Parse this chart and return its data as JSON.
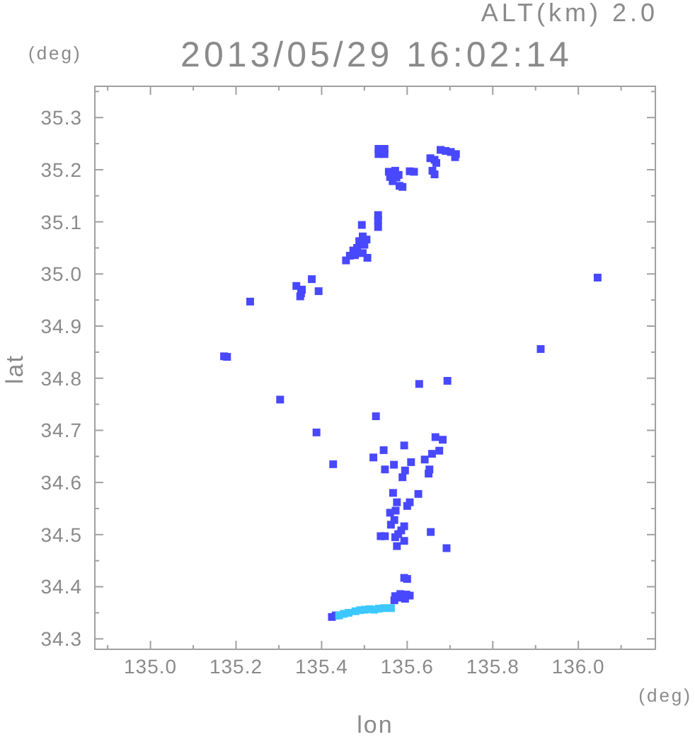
{
  "chart_data": {
    "type": "scatter",
    "title": "2013/05/29 16:02:14",
    "subtitle": "ALT(km) 2.0",
    "xlabel": "lon",
    "ylabel": "lat",
    "annotations": [
      "(deg)",
      "(deg)"
    ],
    "marker": "square",
    "xlim": [
      134.87,
      136.18
    ],
    "ylim": [
      34.28,
      35.36
    ],
    "xticks": [
      {
        "value": 134.9,
        "label": null
      },
      {
        "value": 135,
        "label": "135.0"
      },
      {
        "value": 135.1,
        "label": null
      },
      135.2,
      {
        "value": 135.3,
        "label": null
      },
      135.4,
      {
        "value": 135.5,
        "label": null
      },
      135.6,
      {
        "value": 135.7,
        "label": null
      },
      135.8,
      {
        "value": 135.9,
        "label": null
      },
      {
        "value": 136,
        "label": "136.0"
      },
      {
        "value": 136.1,
        "label": null
      }
    ],
    "yticks": [
      34.3,
      {
        "value": 34.35,
        "label": null
      },
      34.4,
      {
        "value": 34.45,
        "label": null
      },
      34.5,
      {
        "value": 34.55,
        "label": null
      },
      34.6,
      {
        "value": 34.65,
        "label": null
      },
      34.7,
      {
        "value": 34.75,
        "label": null
      },
      34.8,
      {
        "value": 34.85,
        "label": null
      },
      34.9,
      {
        "value": 34.95,
        "label": null
      },
      {
        "value": 35,
        "label": "35.0"
      },
      {
        "value": 35.05,
        "label": null
      },
      35.1,
      {
        "value": 35.15,
        "label": null
      },
      35.2,
      {
        "value": 35.25,
        "label": null
      },
      35.3,
      {
        "value": 35.35,
        "label": null
      }
    ],
    "series": [
      {
        "color": "#4848ff",
        "x": [
          135.533,
          135.547,
          135.533,
          135.547,
          135.678,
          135.69,
          135.702,
          135.714,
          135.712,
          135.664,
          135.654,
          135.668,
          135.557,
          135.572,
          135.56,
          135.575,
          135.566,
          135.58,
          135.606,
          135.616,
          135.659,
          135.664,
          135.589,
          135.582,
          135.532,
          135.532,
          135.494,
          135.532,
          135.496,
          135.505,
          135.488,
          135.5,
          135.474,
          135.483,
          135.496,
          135.466,
          135.457,
          135.507,
          135.478,
          135.377,
          135.352,
          135.354,
          135.35,
          135.393,
          135.341,
          135.233,
          135.179,
          135.172,
          135.303,
          135.912,
          135.628,
          135.694,
          135.527,
          136.045,
          135.388,
          135.427,
          135.521,
          135.545,
          135.593,
          135.666,
          135.683,
          135.675,
          135.658,
          135.641,
          135.609,
          135.569,
          135.548,
          135.595,
          135.652,
          135.65,
          135.589,
          135.567,
          135.626,
          135.576,
          135.6,
          135.606,
          135.573,
          135.56,
          135.57,
          135.562,
          135.593,
          135.579,
          135.586,
          135.572,
          135.538,
          135.548,
          135.655,
          135.593,
          135.576,
          135.692,
          135.593,
          135.6,
          135.584,
          135.57,
          135.584,
          135.598,
          135.606,
          135.572,
          135.595,
          135.424,
          135.433
        ],
        "values": [
          35.24,
          35.24,
          35.23,
          35.23,
          35.238,
          35.236,
          35.234,
          35.23,
          35.224,
          35.219,
          35.222,
          35.213,
          35.196,
          35.198,
          35.186,
          35.185,
          35.178,
          35.19,
          35.197,
          35.196,
          35.198,
          35.191,
          35.167,
          35.169,
          35.113,
          35.103,
          35.094,
          35.09,
          35.072,
          35.066,
          35.063,
          35.056,
          35.045,
          35.05,
          35.04,
          35.035,
          35.026,
          35.031,
          35.036,
          34.99,
          34.963,
          34.97,
          34.957,
          34.967,
          34.977,
          34.947,
          34.841,
          34.842,
          34.759,
          34.856,
          34.789,
          34.795,
          34.727,
          34.993,
          34.696,
          34.635,
          34.648,
          34.662,
          34.671,
          34.687,
          34.682,
          34.661,
          34.655,
          34.644,
          34.639,
          34.634,
          34.625,
          34.623,
          34.625,
          34.617,
          34.61,
          34.58,
          34.578,
          34.562,
          34.555,
          34.562,
          34.546,
          34.542,
          34.528,
          34.519,
          34.516,
          34.501,
          34.508,
          34.495,
          34.497,
          34.497,
          34.505,
          34.488,
          34.478,
          34.474,
          34.417,
          34.415,
          34.379,
          34.374,
          34.386,
          34.385,
          34.383,
          34.382,
          34.377,
          34.342,
          34.345
        ]
      },
      {
        "color": "#3cc8ff",
        "x": [
          135.441,
          135.452,
          135.463,
          135.479,
          135.49,
          135.501,
          135.512,
          135.523,
          135.534,
          135.545,
          135.562
        ],
        "values": [
          34.345,
          34.348,
          34.35,
          34.353,
          34.355,
          34.356,
          34.357,
          34.356,
          34.358,
          34.359,
          34.359
        ]
      }
    ]
  }
}
